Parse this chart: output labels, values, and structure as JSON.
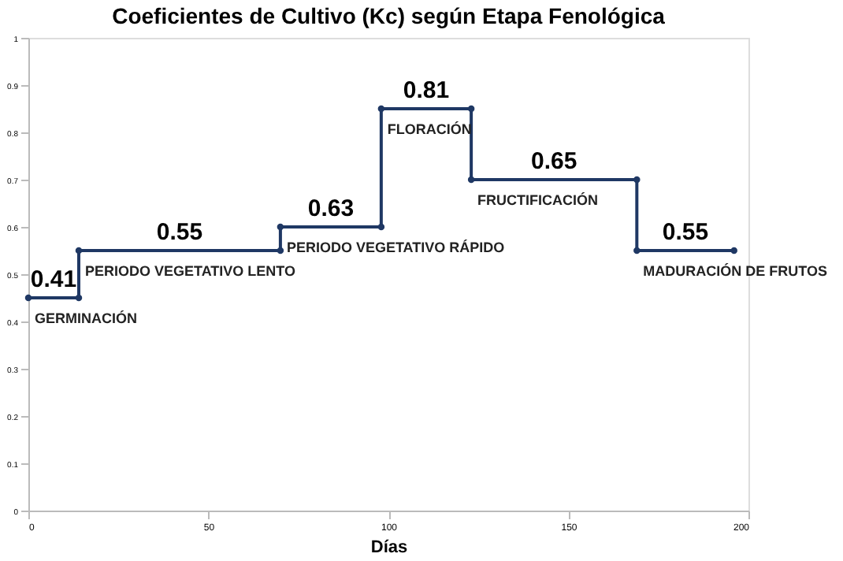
{
  "chart_data": {
    "type": "line",
    "title": "Coeficientes de Cultivo (Kc) según Etapa Fenológica",
    "xlabel": "Días",
    "x": [
      0,
      14,
      14,
      70,
      70,
      98,
      98,
      123,
      123,
      169,
      169,
      196
    ],
    "series": [
      {
        "color": "#1f3864",
        "values": [
          0.45,
          0.45,
          0.55,
          0.55,
          0.6,
          0.6,
          0.85,
          0.85,
          0.7,
          0.7,
          0.55,
          0.55
        ]
      }
    ],
    "xlim": [
      0,
      200
    ],
    "xticks": [
      0,
      50,
      100,
      150,
      200
    ],
    "ylim": [
      0,
      1
    ],
    "yticks": [
      0,
      0.1,
      0.2,
      0.3,
      0.4,
      0.5,
      0.6,
      0.7,
      0.8,
      0.9,
      1
    ],
    "grid": false,
    "marker": "circle",
    "line_style": "solid",
    "annotations": [
      {
        "text": "0.41",
        "x": 7,
        "y": 0.45
      },
      {
        "text": "GERMINACIÓN",
        "x": 0,
        "y": 0.45
      },
      {
        "text": "0.55",
        "x": 42,
        "y": 0.55
      },
      {
        "text": "PERIODO VEGETATIVO LENTO",
        "x": 14,
        "y": 0.55
      },
      {
        "text": "0.63",
        "x": 84,
        "y": 0.6
      },
      {
        "text": "PERIODO VEGETATIVO RÁPIDO",
        "x": 70,
        "y": 0.6
      },
      {
        "text": "0.81",
        "x": 110.5,
        "y": 0.85
      },
      {
        "text": "FLORACIÓN",
        "x": 98,
        "y": 0.85
      },
      {
        "text": "0.65",
        "x": 146,
        "y": 0.7
      },
      {
        "text": "FRUCTIFICACIÓN",
        "x": 123,
        "y": 0.7
      },
      {
        "text": "0.55",
        "x": 182.5,
        "y": 0.55
      },
      {
        "text": "MADURACIÓN DE FRUTOS",
        "x": 169,
        "y": 0.55
      }
    ]
  }
}
